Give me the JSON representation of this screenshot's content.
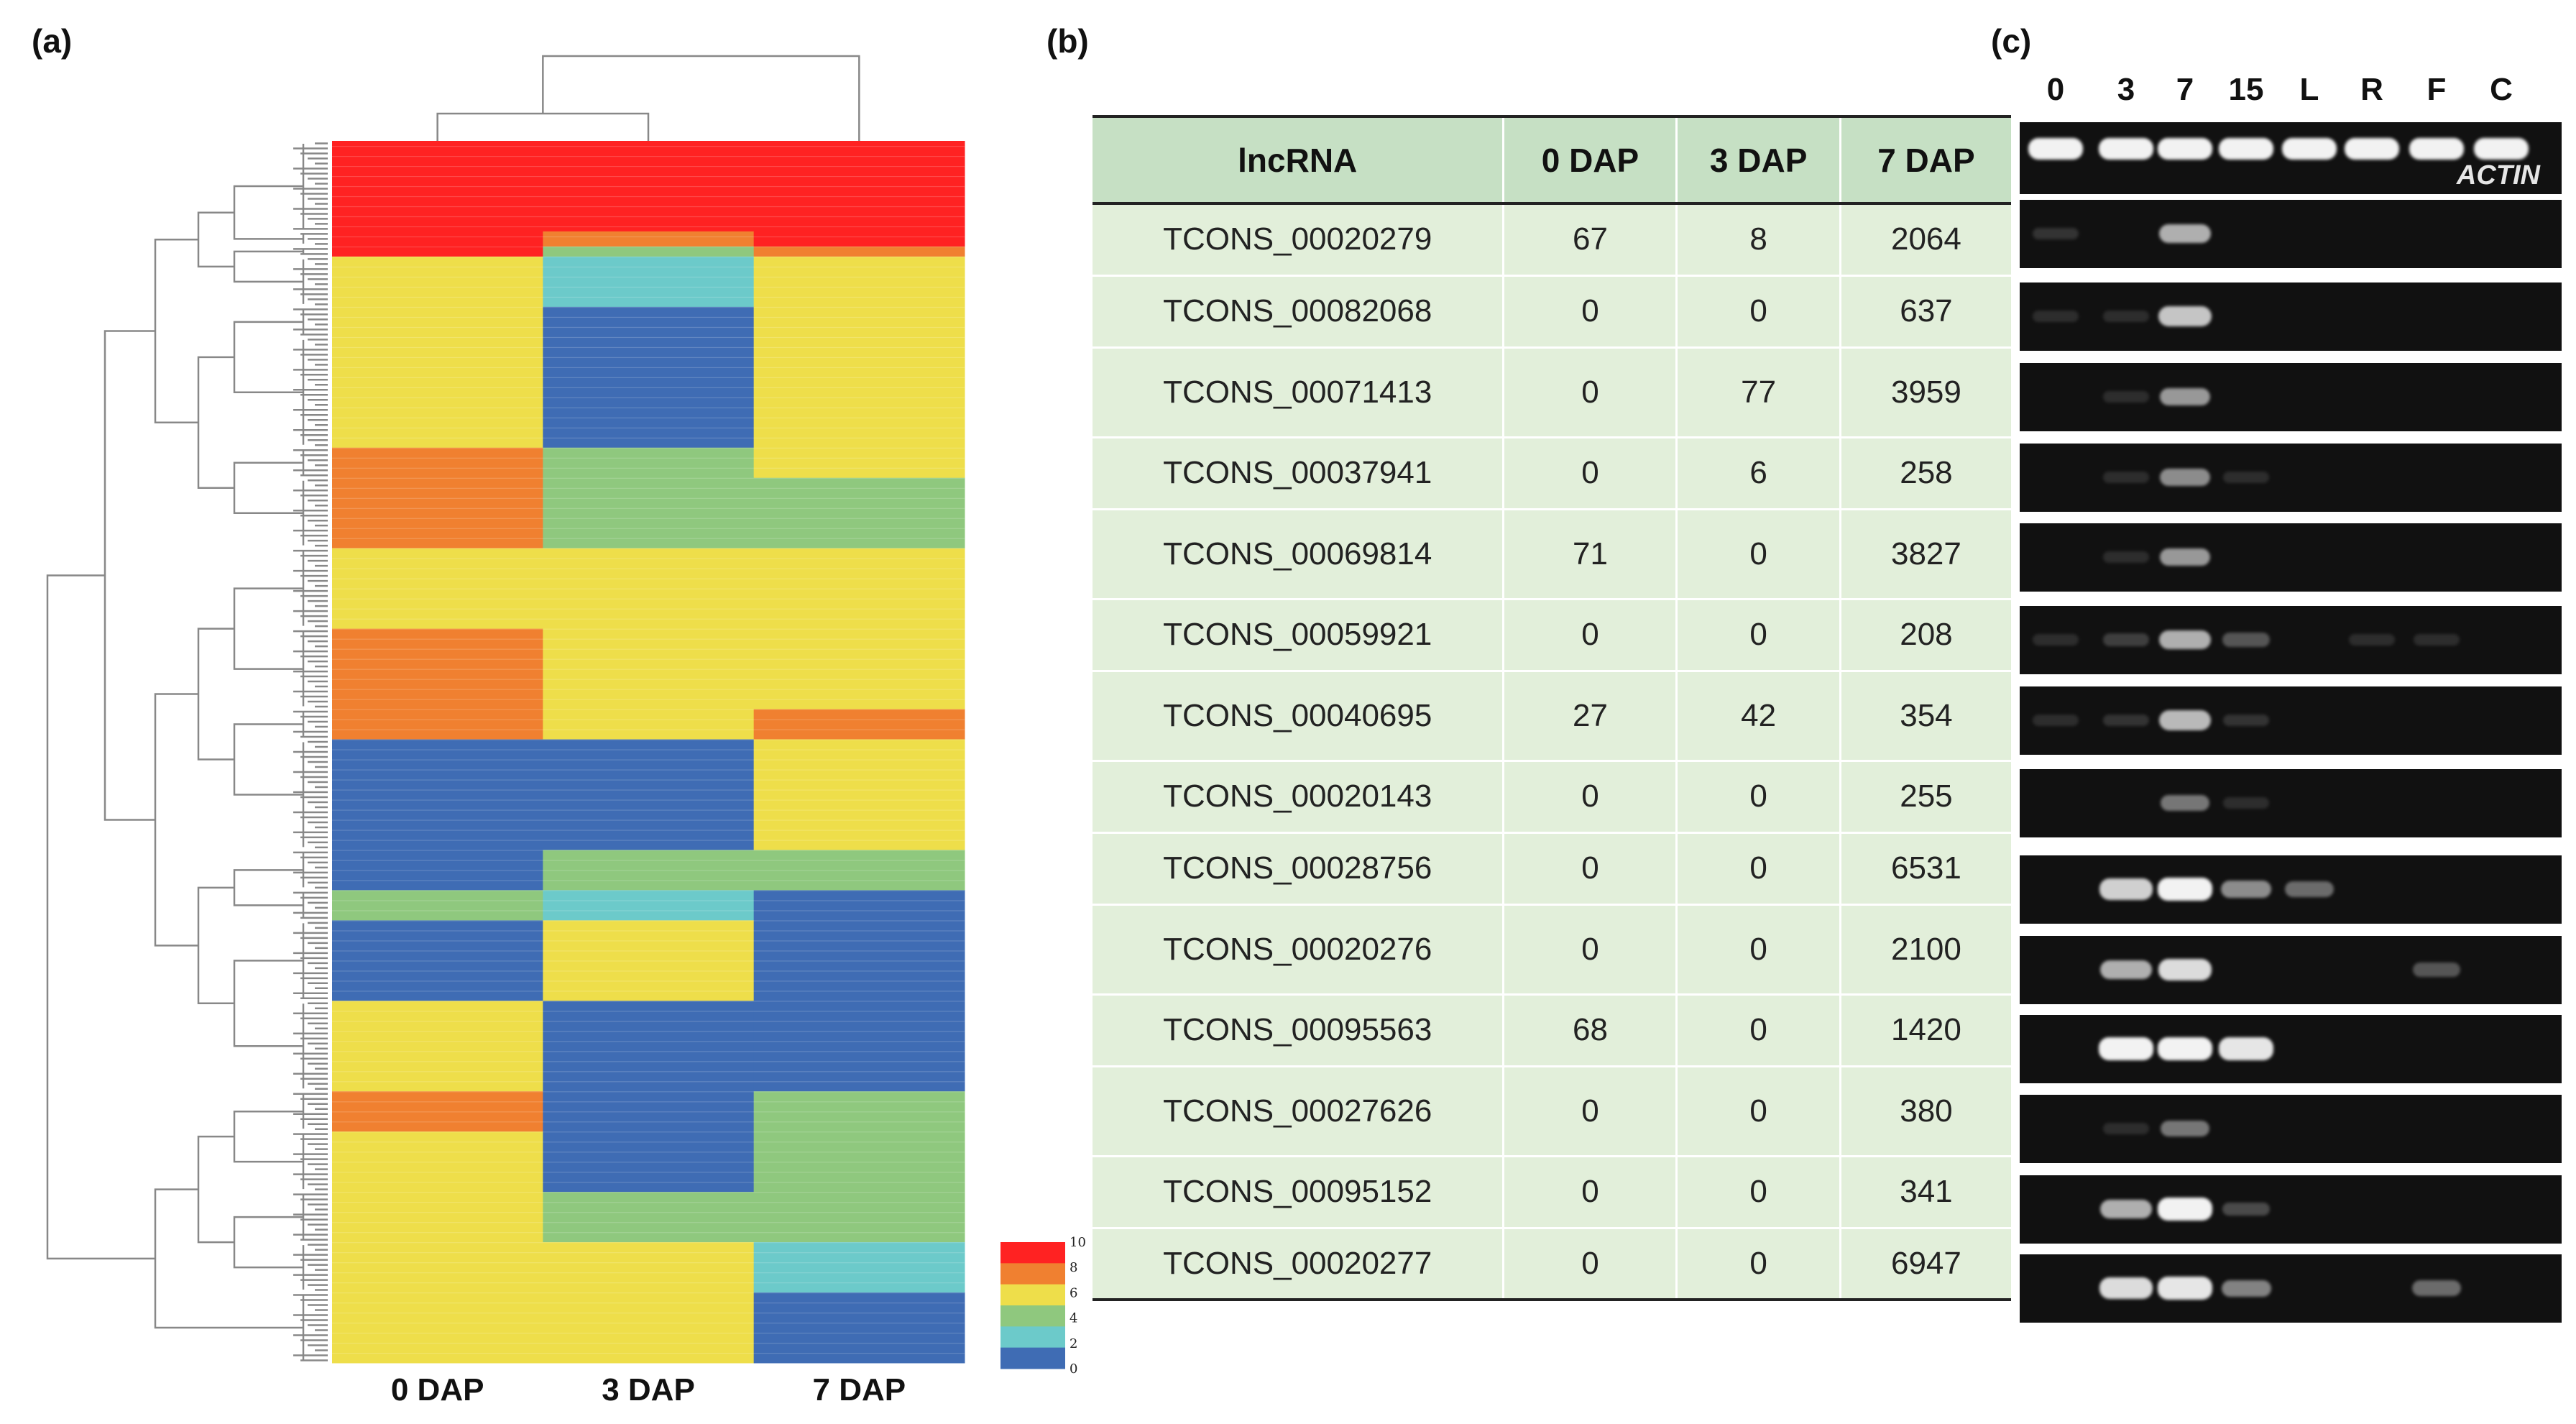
{
  "panels": {
    "a": "(a)",
    "b": "(b)",
    "c": "(c)"
  },
  "heatmap": {
    "columns": [
      "0 DAP",
      "3 DAP",
      "7 DAP"
    ],
    "legend": {
      "ticks": [
        "10",
        "8",
        "6",
        "4",
        "2",
        "0"
      ],
      "colors": [
        "#ff2222",
        "#f08030",
        "#eede4a",
        "#8fc87e",
        "#6ccaca",
        "#3f6cb4"
      ]
    },
    "blocks": [
      {
        "rows": 18,
        "values": [
          10,
          10,
          10
        ]
      },
      {
        "rows": 3,
        "values": [
          10,
          8,
          10
        ]
      },
      {
        "rows": 2,
        "values": [
          10,
          4,
          8
        ]
      },
      {
        "rows": 10,
        "values": [
          6,
          2,
          6
        ]
      },
      {
        "rows": 6,
        "values": [
          6,
          0,
          6
        ]
      },
      {
        "rows": 22,
        "values": [
          6,
          0,
          6
        ]
      },
      {
        "rows": 6,
        "values": [
          8,
          4,
          6
        ]
      },
      {
        "rows": 14,
        "values": [
          8,
          4,
          4
        ]
      },
      {
        "rows": 16,
        "values": [
          6,
          6,
          6
        ]
      },
      {
        "rows": 16,
        "values": [
          8,
          6,
          6
        ]
      },
      {
        "rows": 6,
        "values": [
          8,
          6,
          8
        ]
      },
      {
        "rows": 22,
        "values": [
          0,
          0,
          6
        ]
      },
      {
        "rows": 8,
        "values": [
          0,
          4,
          4
        ]
      },
      {
        "rows": 6,
        "values": [
          4,
          2,
          0
        ]
      },
      {
        "rows": 16,
        "values": [
          0,
          6,
          0
        ]
      },
      {
        "rows": 18,
        "values": [
          6,
          0,
          0
        ]
      },
      {
        "rows": 8,
        "values": [
          8,
          0,
          4
        ]
      },
      {
        "rows": 12,
        "values": [
          6,
          0,
          4
        ]
      },
      {
        "rows": 10,
        "values": [
          6,
          4,
          4
        ]
      },
      {
        "rows": 10,
        "values": [
          6,
          6,
          2
        ]
      },
      {
        "rows": 14,
        "values": [
          6,
          6,
          0
        ]
      }
    ]
  },
  "table": {
    "headers": [
      "lncRNA",
      "0 DAP",
      "3 DAP",
      "7 DAP"
    ],
    "rows": [
      [
        "TCONS_00020279",
        "67",
        "8",
        "2064"
      ],
      [
        "TCONS_00082068",
        "0",
        "0",
        "637"
      ],
      [
        "TCONS_00071413",
        "0",
        "77",
        "3959"
      ],
      [
        "TCONS_00037941",
        "0",
        "6",
        "258"
      ],
      [
        "TCONS_00069814",
        "71",
        "0",
        "3827"
      ],
      [
        "TCONS_00059921",
        "0",
        "0",
        "208"
      ],
      [
        "TCONS_00040695",
        "27",
        "42",
        "354"
      ],
      [
        "TCONS_00020143",
        "0",
        "0",
        "255"
      ],
      [
        "TCONS_00028756",
        "0",
        "0",
        "6531"
      ],
      [
        "TCONS_00020276",
        "0",
        "0",
        "2100"
      ],
      [
        "TCONS_00095563",
        "68",
        "0",
        "1420"
      ],
      [
        "TCONS_00027626",
        "0",
        "0",
        "380"
      ],
      [
        "TCONS_00095152",
        "0",
        "0",
        "341"
      ],
      [
        "TCONS_00020277",
        "0",
        "0",
        "6947"
      ]
    ]
  },
  "gel": {
    "lanes": [
      "0",
      "3",
      "7",
      "15",
      "L",
      "R",
      "F",
      "C"
    ],
    "actin_label": "ACTIN",
    "band_intensity_rows": [
      [
        1,
        1,
        1,
        1,
        1,
        1,
        1,
        1
      ],
      [
        0.15,
        0,
        0.7,
        0,
        0,
        0,
        0,
        0
      ],
      [
        0.1,
        0.1,
        0.8,
        0,
        0,
        0,
        0,
        0
      ],
      [
        0,
        0.1,
        0.6,
        0,
        0,
        0,
        0,
        0
      ],
      [
        0,
        0.1,
        0.55,
        0.1,
        0,
        0,
        0,
        0
      ],
      [
        0,
        0.1,
        0.6,
        0,
        0,
        0,
        0,
        0
      ],
      [
        0.1,
        0.2,
        0.7,
        0.3,
        0,
        0.1,
        0.1,
        0
      ],
      [
        0.1,
        0.15,
        0.75,
        0.15,
        0,
        0,
        0,
        0
      ],
      [
        0,
        0,
        0.45,
        0.1,
        0,
        0,
        0,
        0
      ],
      [
        0,
        0.85,
        1,
        0.55,
        0.4,
        0,
        0,
        0
      ],
      [
        0,
        0.7,
        0.9,
        0,
        0,
        0,
        0.3,
        0
      ],
      [
        0,
        1,
        1,
        0.95,
        0,
        0,
        0,
        0
      ],
      [
        0,
        0.1,
        0.45,
        0,
        0,
        0,
        0,
        0
      ],
      [
        0,
        0.7,
        1,
        0.25,
        0,
        0,
        0,
        0
      ],
      [
        0,
        0.9,
        0.95,
        0.5,
        0,
        0,
        0.4,
        0
      ]
    ]
  }
}
